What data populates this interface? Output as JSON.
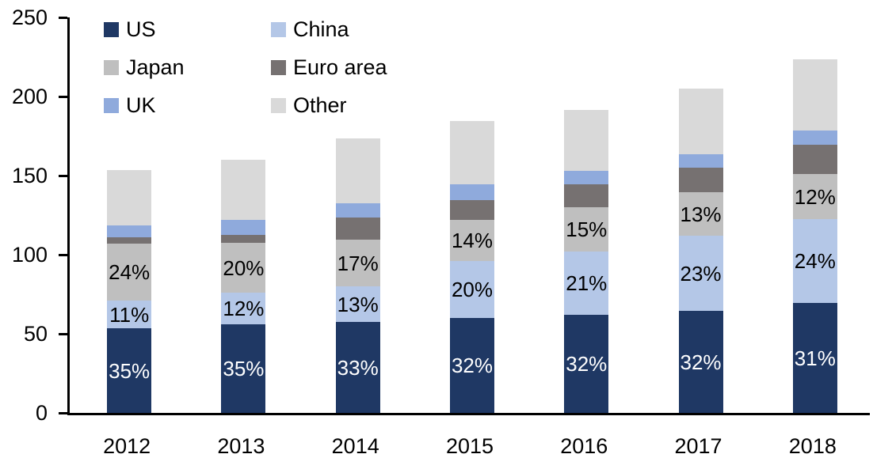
{
  "chart_data": {
    "type": "bar",
    "stacked": true,
    "categories": [
      "2012",
      "2013",
      "2014",
      "2015",
      "2016",
      "2017",
      "2018"
    ],
    "series": [
      {
        "name": "US",
        "color": "#1f3864",
        "label_color": "#ffffff",
        "values": [
          53.5,
          56,
          57.5,
          60,
          62,
          64.5,
          69.5
        ],
        "labels": [
          "35%",
          "35%",
          "33%",
          "32%",
          "32%",
          "32%",
          "31%"
        ]
      },
      {
        "name": "China",
        "color": "#b4c7e7",
        "label_color": "#000000",
        "values": [
          17.5,
          20,
          22.5,
          36,
          40,
          47.5,
          53
        ],
        "labels": [
          "11%",
          "12%",
          "13%",
          "20%",
          "21%",
          "23%",
          "24%"
        ]
      },
      {
        "name": "Japan",
        "color": "#bfbfbf",
        "label_color": "#000000",
        "values": [
          36,
          31.5,
          29.5,
          26,
          28,
          27.5,
          28.5
        ],
        "labels": [
          "24%",
          "20%",
          "17%",
          "14%",
          "15%",
          "13%",
          "12%"
        ]
      },
      {
        "name": "Euro area",
        "color": "#767171",
        "label_color": "#000000",
        "values": [
          4,
          5,
          14,
          12.5,
          14.5,
          15.5,
          18.5
        ],
        "labels": [
          "",
          "",
          "",
          "",
          "",
          "",
          ""
        ]
      },
      {
        "name": "UK",
        "color": "#8faadc",
        "label_color": "#000000",
        "values": [
          7.5,
          9.5,
          9,
          10,
          8.5,
          8.5,
          9
        ],
        "labels": [
          "",
          "",
          "",
          "",
          "",
          "",
          ""
        ]
      },
      {
        "name": "Other",
        "color": "#d9d9d9",
        "label_color": "#000000",
        "values": [
          35,
          38,
          41,
          40,
          38.5,
          41.5,
          45
        ],
        "labels": [
          "",
          "",
          "",
          "",
          "",
          "",
          ""
        ]
      }
    ],
    "totals": [
      153.5,
      160,
      173.5,
      184.5,
      191.5,
      205,
      223.5
    ],
    "ylim": [
      0,
      250
    ],
    "yticks": [
      "0",
      "50",
      "100",
      "150",
      "200",
      "250"
    ],
    "grid": false,
    "legend_position": "top-left",
    "legend_columns": 2,
    "legend_order": [
      "US",
      "China",
      "Japan",
      "Euro area",
      "UK",
      "Other"
    ]
  },
  "axis_colors": {
    "axis_line": "#000000",
    "text": "#000000"
  }
}
